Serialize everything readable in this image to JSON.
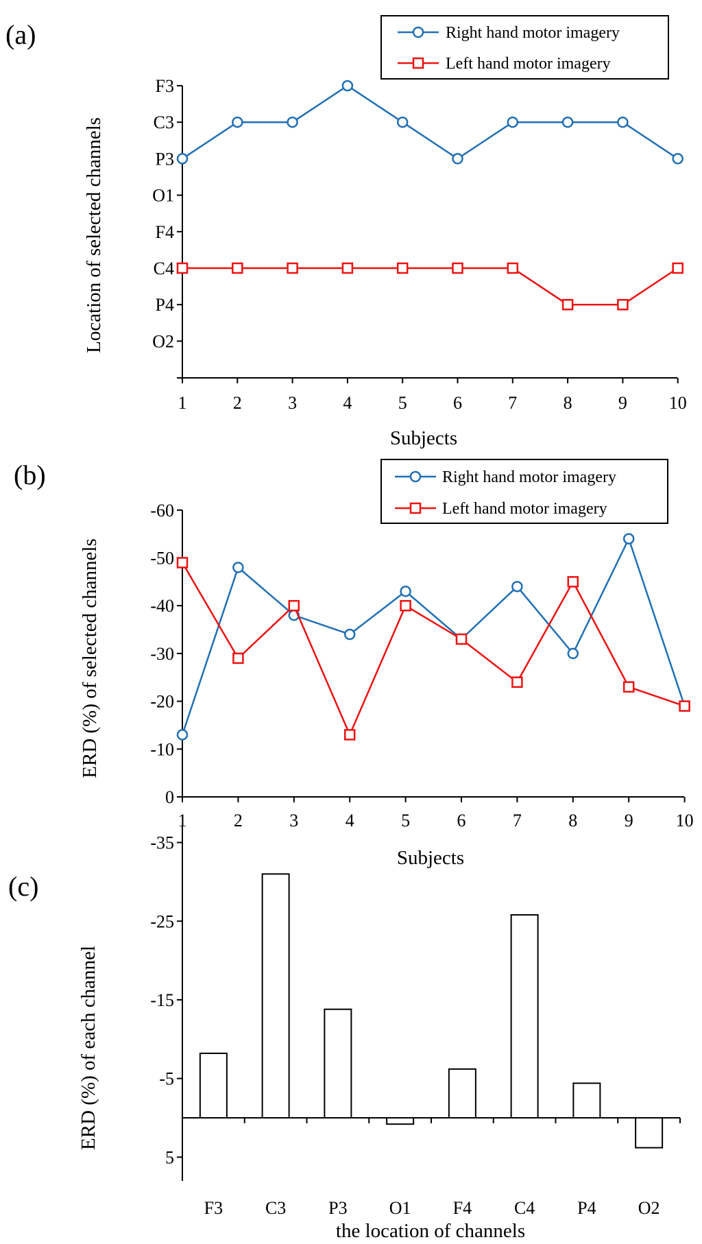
{
  "chart_data": [
    {
      "panel": "(a)",
      "type": "line",
      "xlabel": "Subjects",
      "ylabel": "Location of selected channels",
      "x": [
        1,
        2,
        3,
        4,
        5,
        6,
        7,
        8,
        9,
        10
      ],
      "y_categories": [
        "F3",
        "C3",
        "P3",
        "O1",
        "F4",
        "C4",
        "P4",
        "O2"
      ],
      "series": [
        {
          "name": "Right hand motor imagery",
          "color": "#1f6fb5",
          "marker": "circle",
          "values": [
            "P3",
            "C3",
            "C3",
            "F3",
            "C3",
            "P3",
            "C3",
            "C3",
            "C3",
            "P3"
          ]
        },
        {
          "name": "Left hand motor imagery",
          "color": "#ee1111",
          "marker": "square",
          "values": [
            "C4",
            "C4",
            "C4",
            "C4",
            "C4",
            "C4",
            "C4",
            "P4",
            "P4",
            "C4"
          ]
        }
      ],
      "legend": "top-right",
      "grid": false
    },
    {
      "panel": "(b)",
      "type": "line",
      "xlabel": "Subjects",
      "ylabel": "ERD (%) of selected channels",
      "x": [
        1,
        2,
        3,
        4,
        5,
        6,
        7,
        8,
        9,
        10
      ],
      "y_ticks": [
        0,
        -10,
        -20,
        -30,
        -40,
        -50,
        -60
      ],
      "ylim": [
        0,
        -60
      ],
      "series": [
        {
          "name": "Right hand motor imagery",
          "color": "#1f6fb5",
          "marker": "circle",
          "values": [
            -13,
            -48,
            -38,
            -34,
            -43,
            -33,
            -44,
            -30,
            -54,
            -19
          ]
        },
        {
          "name": "Left hand motor imagery",
          "color": "#ee1111",
          "marker": "square",
          "values": [
            -49,
            -29,
            -40,
            -13,
            -40,
            -33,
            -24,
            -45,
            -23,
            -19
          ]
        }
      ],
      "legend": "top-right",
      "grid": false
    },
    {
      "panel": "(c)",
      "type": "bar",
      "xlabel": "the location of channels",
      "ylabel": "ERD (%) of each channel",
      "categories": [
        "F3",
        "C3",
        "P3",
        "O1",
        "F4",
        "C4",
        "P4",
        "O2"
      ],
      "values": [
        -8.2,
        -31,
        -13.8,
        0.8,
        -6.2,
        -25.8,
        -4.4,
        3.8
      ],
      "y_ticks": [
        "-35",
        "-25",
        "-15",
        "-5",
        "5"
      ],
      "ylim": [
        5,
        -35
      ],
      "grid": false
    }
  ]
}
